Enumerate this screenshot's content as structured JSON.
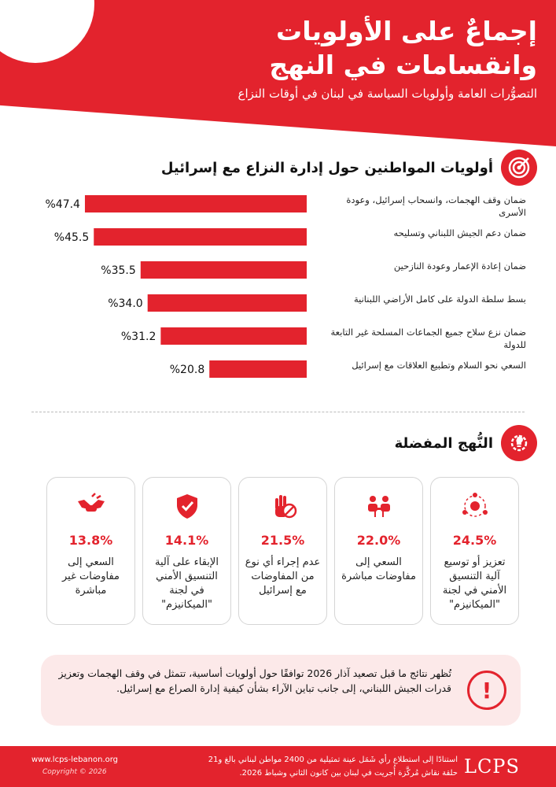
{
  "header": {
    "title": "إجماعٌ على الأولويات وانقسامات في النهج",
    "subtitle": "التصوُّرات العامة وأولويات السياسة في لبنان في أوقات النزاع"
  },
  "priorities_section": {
    "title": "أولويات المواطنين حول إدارة النزاع مع إسرائيل",
    "icon": "target-icon"
  },
  "chart_data": {
    "type": "bar",
    "orientation": "horizontal",
    "categories": [
      "ضمان وقف الهجمات، وانسحاب إسرائيل، وعودة الأسرى",
      "ضمان دعم الجيش اللبناني وتسليحه",
      "ضمان إعادة الإعمار وعودة النازحين",
      "بسط سلطة الدولة على كامل الأراضي اللبنانية",
      "ضمان نزع سلاح جميع الجماعات المسلحة غير التابعة للدولة",
      "السعي نحو السلام وتطبيع العلاقات مع إسرائيل"
    ],
    "values": [
      47.4,
      45.5,
      35.5,
      34.0,
      31.2,
      20.8
    ],
    "value_labels": [
      "%47.4",
      "%45.5",
      "%35.5",
      "%34.0",
      "%31.2",
      "%20.8"
    ],
    "bar_color": "#e3232d"
  },
  "approaches_section": {
    "title": "النُّهج المفضلة",
    "icon": "gear-lightbulb-icon"
  },
  "approaches": [
    {
      "pct": "24.5%",
      "text": "تعزيز أو توسيع آلية التنسيق الأمني في لجنة \"الميكانيزم\"",
      "icon": "network-icon"
    },
    {
      "pct": "22.0%",
      "text": "السعي إلى مفاوضات مباشرة",
      "icon": "meeting-icon"
    },
    {
      "pct": "21.5%",
      "text": "عدم إجراء أي نوع من المفاوضات مع إسرائيل",
      "icon": "stop-hand-icon"
    },
    {
      "pct": "14.1%",
      "text": "الإبقاء على آلية التنسيق الأمني في لجنة \"الميكانيزم\"",
      "icon": "shield-check-icon"
    },
    {
      "pct": "13.8%",
      "text": "السعي إلى مفاوضات غير مباشرة",
      "icon": "handshake-icon"
    }
  ],
  "note": {
    "text": "تُظهر نتائج ما قبل تصعيد آذار 2026 توافقًا حول أولويات أساسية، تتمثل في وقف الهجمات وتعزيز قدرات الجيش اللبناني، إلى جانب تباين الآراء بشأن كيفية إدارة الصراع مع إسرائيل.",
    "icon": "exclamation-icon"
  },
  "footer": {
    "logo": "LCPS",
    "source_line1": "استنادًا إلى استطلاع رأي شَمَل عينة تمثيلية من 2400 مواطن لبناني بالغ و21",
    "source_line2": "حلقة نقاش مُركَّزة أُجريت في لبنان بين كانون الثاني وشباط 2026.",
    "url": "www.lcps-lebanon.org",
    "copyright": "Copyright © 2026"
  },
  "colors": {
    "accent": "#e3232d",
    "note_bg": "#fce9e9"
  }
}
